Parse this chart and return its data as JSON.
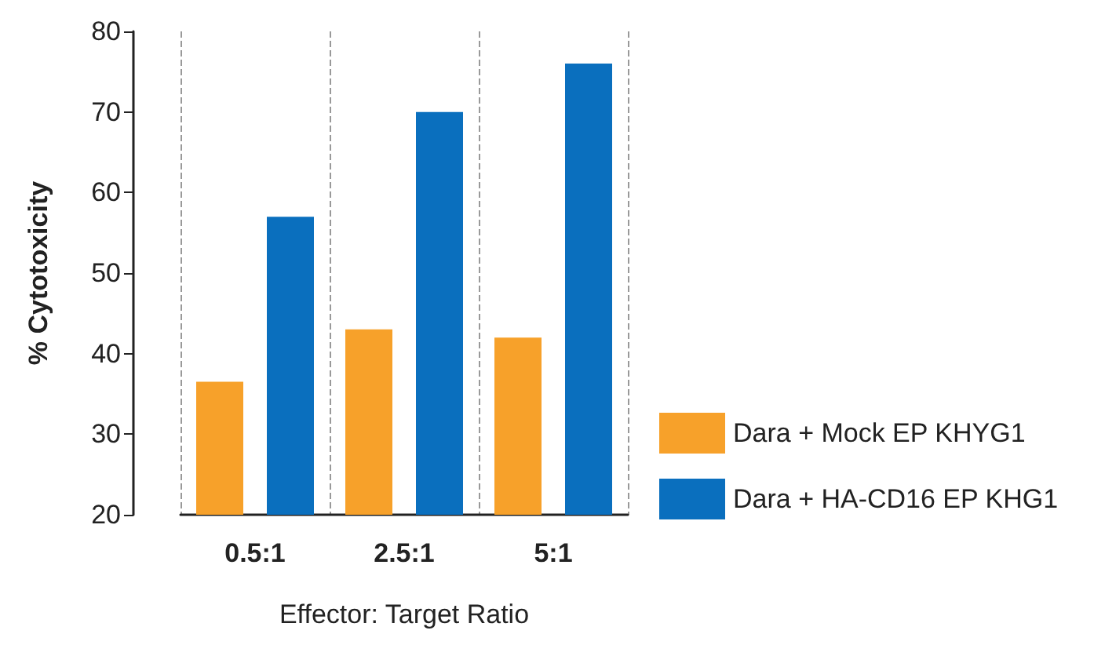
{
  "chart_data": {
    "type": "bar",
    "xlabel": "Effector: Target Ratio",
    "ylabel": "% Cytotoxicity",
    "categories": [
      "0.5:1",
      "2.5:1",
      "5:1"
    ],
    "series": [
      {
        "name": "Dara + Mock EP KHYG1",
        "color": "#f7a12a",
        "values": [
          36.5,
          43,
          42
        ]
      },
      {
        "name": "Dara + HA-CD16 EP KHG1",
        "color": "#0a6fbe",
        "values": [
          57,
          70,
          76
        ]
      }
    ],
    "ylim": [
      20,
      80
    ],
    "yticks": [
      20,
      30,
      40,
      50,
      60,
      70,
      80
    ],
    "grid": "x",
    "legend": "right"
  }
}
